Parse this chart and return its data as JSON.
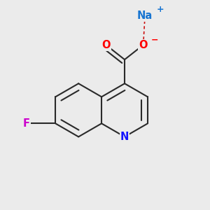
{
  "background_color": "#ebebeb",
  "bond_color": "#2a2a2a",
  "bond_width": 1.5,
  "atom_labels": {
    "N": {
      "color": "#1414ff",
      "fontsize": 10.5,
      "fontweight": "bold"
    },
    "O1": {
      "color": "#ff0000",
      "fontsize": 10.5,
      "fontweight": "bold"
    },
    "O2": {
      "color": "#ff0000",
      "fontsize": 10.5,
      "fontweight": "bold"
    },
    "F": {
      "color": "#cc00cc",
      "fontsize": 10.5,
      "fontweight": "bold"
    },
    "Na": {
      "color": "#1875d1",
      "fontsize": 10.5,
      "fontweight": "bold"
    },
    "plus": {
      "color": "#1875d1",
      "fontsize": 9,
      "fontweight": "bold"
    },
    "minus": {
      "color": "#ff0000",
      "fontsize": 9,
      "fontweight": "bold"
    }
  },
  "figsize": [
    3.0,
    3.0
  ],
  "dpi": 100,
  "xlim": [
    -0.6,
    0.6
  ],
  "ylim": [
    -0.55,
    0.65
  ]
}
